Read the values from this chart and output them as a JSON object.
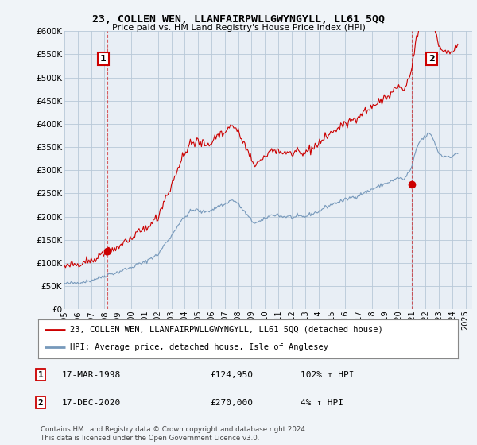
{
  "title": "23, COLLEN WEN, LLANFAIRPWLLGWYNGYLL, LL61 5QQ",
  "subtitle": "Price paid vs. HM Land Registry's House Price Index (HPI)",
  "legend_line1": "23, COLLEN WEN, LLANFAIRPWLLGWYNGYLL, LL61 5QQ (detached house)",
  "legend_line2": "HPI: Average price, detached house, Isle of Anglesey",
  "point1_date": "17-MAR-1998",
  "point1_price": "£124,950",
  "point1_hpi": "102% ↑ HPI",
  "point2_date": "17-DEC-2020",
  "point2_price": "£270,000",
  "point2_hpi": "4% ↑ HPI",
  "footnote": "Contains HM Land Registry data © Crown copyright and database right 2024.\nThis data is licensed under the Open Government Licence v3.0.",
  "ylim": [
    0,
    600000
  ],
  "yticks": [
    0,
    50000,
    100000,
    150000,
    200000,
    250000,
    300000,
    350000,
    400000,
    450000,
    500000,
    550000,
    600000
  ],
  "red_color": "#cc0000",
  "blue_color": "#7799bb",
  "background_color": "#f0f4f8",
  "plot_bg_color": "#e8eef5",
  "point1_x": 1998.21,
  "point1_y": 124950,
  "point2_x": 2020.96,
  "point2_y": 270000,
  "xlim_left": 1995.0,
  "xlim_right": 2025.5,
  "xticks": [
    1995,
    1996,
    1997,
    1998,
    1999,
    2000,
    2001,
    2002,
    2003,
    2004,
    2005,
    2006,
    2007,
    2008,
    2009,
    2010,
    2011,
    2012,
    2013,
    2014,
    2015,
    2016,
    2017,
    2018,
    2019,
    2020,
    2021,
    2022,
    2023,
    2024,
    2025
  ]
}
